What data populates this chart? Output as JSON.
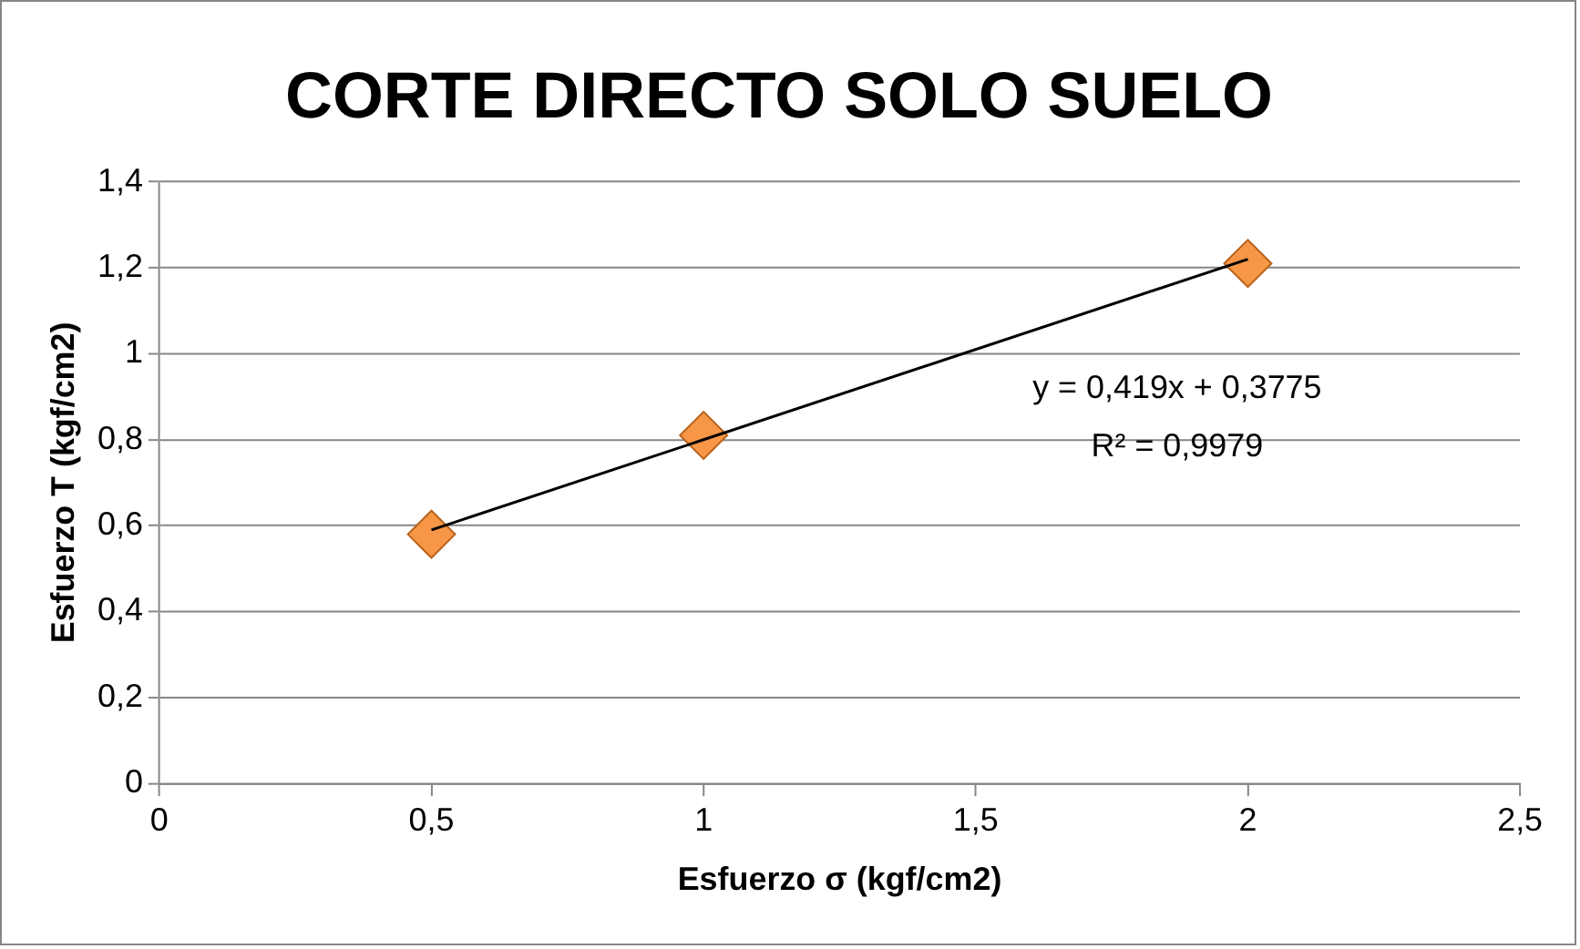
{
  "chart_data": {
    "type": "scatter",
    "title": "CORTE DIRECTO SOLO SUELO",
    "xlabel": "Esfuerzo σ (kgf/cm2)",
    "ylabel": "Esfuerzo T (kgf/cm2)",
    "annotations": [
      "y = 0,419x + 0,3775",
      "R² = 0,9979"
    ],
    "x": [
      0.5,
      1,
      2
    ],
    "series": [
      {
        "color": "#f79646",
        "values": [
          0.58,
          0.81,
          1.21
        ],
        "marker": "diamond"
      },
      {
        "type": "line",
        "color": "#000000",
        "x": [
          0.5,
          2
        ],
        "values": [
          0.59,
          1.22
        ],
        "marker": "none"
      }
    ],
    "xlim": [
      0,
      2.5
    ],
    "xticks": [
      0,
      {
        "value": 0.5,
        "label": "0,5"
      },
      1,
      {
        "value": 1.5,
        "label": "1,5"
      },
      2,
      {
        "value": 2.5,
        "label": "2,5"
      }
    ],
    "ylim": [
      0,
      1.4
    ],
    "yticks": [
      0,
      {
        "value": 0.2,
        "label": "0,2"
      },
      {
        "value": 0.4,
        "label": "0,4"
      },
      {
        "value": 0.6,
        "label": "0,6"
      },
      {
        "value": 0.8,
        "label": "0,8"
      },
      1,
      {
        "value": 1.2,
        "label": "1,2"
      },
      {
        "value": 1.4,
        "label": "1,4"
      }
    ],
    "grid": "y",
    "legend": false
  }
}
